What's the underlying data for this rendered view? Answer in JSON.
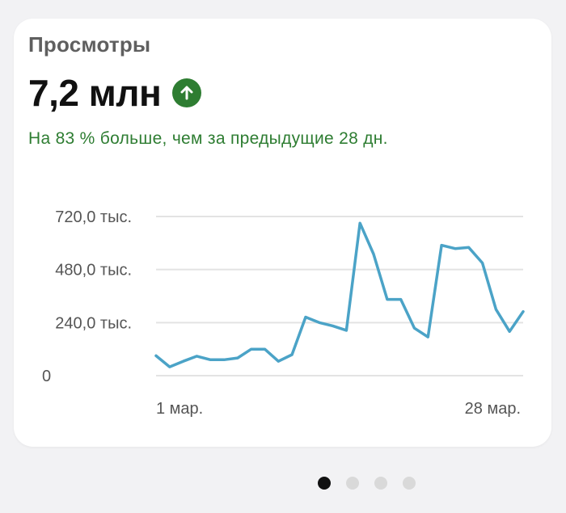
{
  "card": {
    "title": "Просмотры",
    "value": "7,2 млн",
    "trend_icon": "arrow-up-icon",
    "subtitle": "На 83 % больше, чем за предыдущие 28 дн."
  },
  "colors": {
    "positive": "#2e7d32",
    "line": "#4ba3c7",
    "grid": "#e3e3e3",
    "dot_active": "#111111",
    "dot_inactive": "#d9d9d9"
  },
  "chart_data": {
    "type": "line",
    "x_tick_labels": [
      "1 мар.",
      "28 мар."
    ],
    "y_tick_labels": [
      "0",
      "240,0 тыс.",
      "480,0 тыс.",
      "720,0 тыс."
    ],
    "y_ticks": [
      0,
      240000,
      480000,
      720000
    ],
    "ylim": [
      0,
      720000
    ],
    "grid": true,
    "series": [
      {
        "values": [
          90000,
          40000,
          65000,
          88000,
          72000,
          72000,
          80000,
          120000,
          120000,
          65000,
          95000,
          265000,
          240000,
          225000,
          205000,
          690000,
          550000,
          345000,
          345000,
          215000,
          175000,
          590000,
          575000,
          580000,
          510000,
          300000,
          200000,
          290000
        ]
      }
    ]
  },
  "pager": {
    "count": 4,
    "active": 0
  }
}
